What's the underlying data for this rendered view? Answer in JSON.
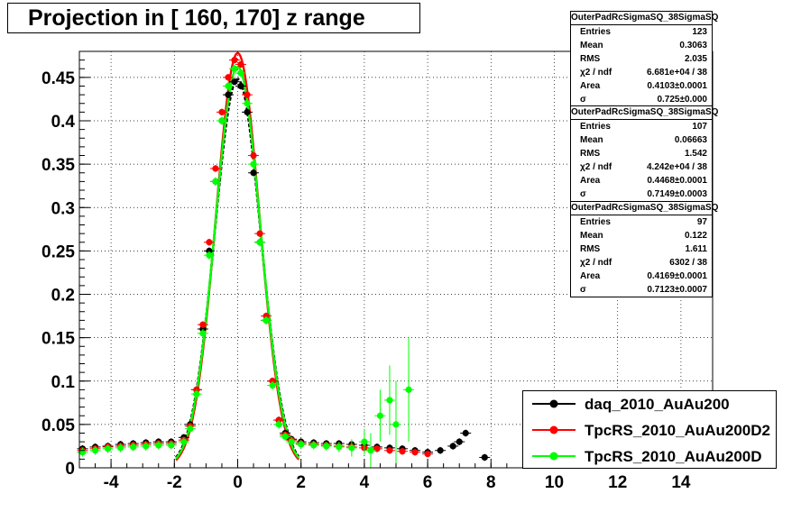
{
  "title": "Projection in [ 160, 170] z range",
  "chart_data": {
    "type": "scatter",
    "xlim": [
      -5,
      15
    ],
    "ylim": [
      0,
      0.48
    ],
    "xticks": [
      -4,
      -2,
      0,
      2,
      4,
      6,
      8,
      10,
      12,
      14
    ],
    "xtick_labels": [
      "-4",
      "-2",
      "0",
      "2",
      "4",
      "6",
      "8",
      "10",
      "12",
      "14"
    ],
    "yticks": [
      0,
      0.05,
      0.1,
      0.15,
      0.2,
      0.25,
      0.3,
      0.35,
      0.4,
      0.45
    ],
    "ytick_labels": [
      "0",
      "0.05",
      "0.1",
      "0.15",
      "0.2",
      "0.25",
      "0.3",
      "0.35",
      "0.4",
      "0.45"
    ],
    "grid": true,
    "legend_position": "bottom-right",
    "series": [
      {
        "name": "daq_2010_AuAu200",
        "color": "#000000",
        "x": [
          -4.9,
          -4.5,
          -4.1,
          -3.7,
          -3.3,
          -2.9,
          -2.5,
          -2.1,
          -1.7,
          -1.5,
          -1.3,
          -1.1,
          -0.9,
          -0.7,
          -0.5,
          -0.3,
          -0.1,
          0.1,
          0.3,
          0.5,
          0.7,
          0.9,
          1.1,
          1.3,
          1.5,
          1.7,
          2.0,
          2.4,
          2.8,
          3.2,
          3.6,
          4.0,
          4.4,
          4.8,
          5.2,
          5.6,
          6.0,
          6.4,
          6.8,
          7.0,
          7.2,
          7.8
        ],
        "y": [
          0.022,
          0.024,
          0.025,
          0.027,
          0.028,
          0.029,
          0.03,
          0.03,
          0.035,
          0.05,
          0.09,
          0.16,
          0.25,
          0.33,
          0.4,
          0.43,
          0.445,
          0.44,
          0.41,
          0.34,
          0.26,
          0.17,
          0.1,
          0.055,
          0.04,
          0.033,
          0.03,
          0.029,
          0.028,
          0.028,
          0.027,
          0.026,
          0.024,
          0.023,
          0.022,
          0.02,
          0.018,
          0.02,
          0.025,
          0.03,
          0.04,
          0.012
        ]
      },
      {
        "name": "TpcRS_2010_AuAu200D2",
        "color": "#ff0000",
        "x": [
          -4.9,
          -4.5,
          -4.1,
          -3.7,
          -3.3,
          -2.9,
          -2.5,
          -2.1,
          -1.7,
          -1.5,
          -1.3,
          -1.1,
          -0.9,
          -0.7,
          -0.5,
          -0.3,
          -0.1,
          0.1,
          0.3,
          0.5,
          0.7,
          0.9,
          1.1,
          1.3,
          1.5,
          1.7,
          2.0,
          2.4,
          2.8,
          3.2,
          3.6,
          4.0,
          4.4,
          4.8,
          5.2,
          5.6,
          6.0
        ],
        "y": [
          0.02,
          0.022,
          0.024,
          0.025,
          0.026,
          0.027,
          0.028,
          0.028,
          0.032,
          0.048,
          0.09,
          0.165,
          0.26,
          0.345,
          0.41,
          0.45,
          0.47,
          0.465,
          0.43,
          0.36,
          0.27,
          0.175,
          0.1,
          0.055,
          0.038,
          0.032,
          0.028,
          0.027,
          0.026,
          0.025,
          0.024,
          0.023,
          0.022,
          0.02,
          0.019,
          0.018,
          0.016
        ]
      },
      {
        "name": "TpcRS_2010_AuAu200D",
        "color": "#00ff00",
        "x": [
          -4.9,
          -4.5,
          -4.1,
          -3.7,
          -3.3,
          -2.9,
          -2.5,
          -2.1,
          -1.7,
          -1.5,
          -1.3,
          -1.1,
          -0.9,
          -0.7,
          -0.5,
          -0.3,
          -0.1,
          0.1,
          0.3,
          0.5,
          0.7,
          0.9,
          1.1,
          1.3,
          1.5,
          1.7,
          2.0,
          2.4,
          2.8,
          3.2,
          3.6,
          4.0,
          4.2,
          4.5,
          4.8,
          5.0,
          5.4
        ],
        "y": [
          0.018,
          0.02,
          0.022,
          0.023,
          0.024,
          0.025,
          0.026,
          0.026,
          0.03,
          0.045,
          0.085,
          0.155,
          0.245,
          0.33,
          0.4,
          0.44,
          0.46,
          0.455,
          0.42,
          0.35,
          0.26,
          0.17,
          0.095,
          0.05,
          0.036,
          0.03,
          0.027,
          0.026,
          0.025,
          0.024,
          0.023,
          0.03,
          0.02,
          0.06,
          0.078,
          0.05,
          0.09
        ],
        "err": [
          0.005,
          0.005,
          0.005,
          0.005,
          0.005,
          0.005,
          0.005,
          0.005,
          0.005,
          0.005,
          0.005,
          0.005,
          0.005,
          0.005,
          0.005,
          0.005,
          0.005,
          0.005,
          0.005,
          0.005,
          0.005,
          0.005,
          0.005,
          0.005,
          0.005,
          0.005,
          0.005,
          0.005,
          0.005,
          0.006,
          0.01,
          0.015,
          0.02,
          0.03,
          0.04,
          0.05,
          0.06
        ]
      }
    ]
  },
  "stats": [
    {
      "name": "OuterPadRcSigmaSQ_38SigmaSQ",
      "rows": [
        {
          "label": "Entries",
          "value": "123"
        },
        {
          "label": "Mean",
          "value": "0.3063"
        },
        {
          "label": "RMS",
          "value": "2.035"
        },
        {
          "label": "χ2 / ndf",
          "value": "6.681e+04 / 38"
        },
        {
          "label": "Area",
          "value": "0.4103±0.0001"
        },
        {
          "label": "σ",
          "value": "0.725±0.000"
        }
      ]
    },
    {
      "name": "OuterPadRcSigmaSQ_38SigmaSQ",
      "rows": [
        {
          "label": "Entries",
          "value": "107"
        },
        {
          "label": "Mean",
          "value": "0.06663"
        },
        {
          "label": "RMS",
          "value": "1.542"
        },
        {
          "label": "χ2 / ndf",
          "value": "4.242e+04 / 38"
        },
        {
          "label": "Area",
          "value": "0.4468±0.0001"
        },
        {
          "label": "σ",
          "value": "0.7149±0.0003"
        }
      ]
    },
    {
      "name": "OuterPadRcSigmaSQ_38SigmaSQ",
      "rows": [
        {
          "label": "Entries",
          "value": "97"
        },
        {
          "label": "Mean",
          "value": "0.122"
        },
        {
          "label": "RMS",
          "value": "1.611"
        },
        {
          "label": "χ2 / ndf",
          "value": "6302 / 38"
        },
        {
          "label": "Area",
          "value": "0.4169±0.0001"
        },
        {
          "label": "σ",
          "value": "0.7123±0.0007"
        }
      ]
    }
  ],
  "legend": [
    {
      "label": "daq_2010_AuAu200",
      "color": "#000000"
    },
    {
      "label": "TpcRS_2010_AuAu200D2",
      "color": "#ff0000"
    },
    {
      "label": "TpcRS_2010_AuAu200D",
      "color": "#00ff00"
    }
  ]
}
